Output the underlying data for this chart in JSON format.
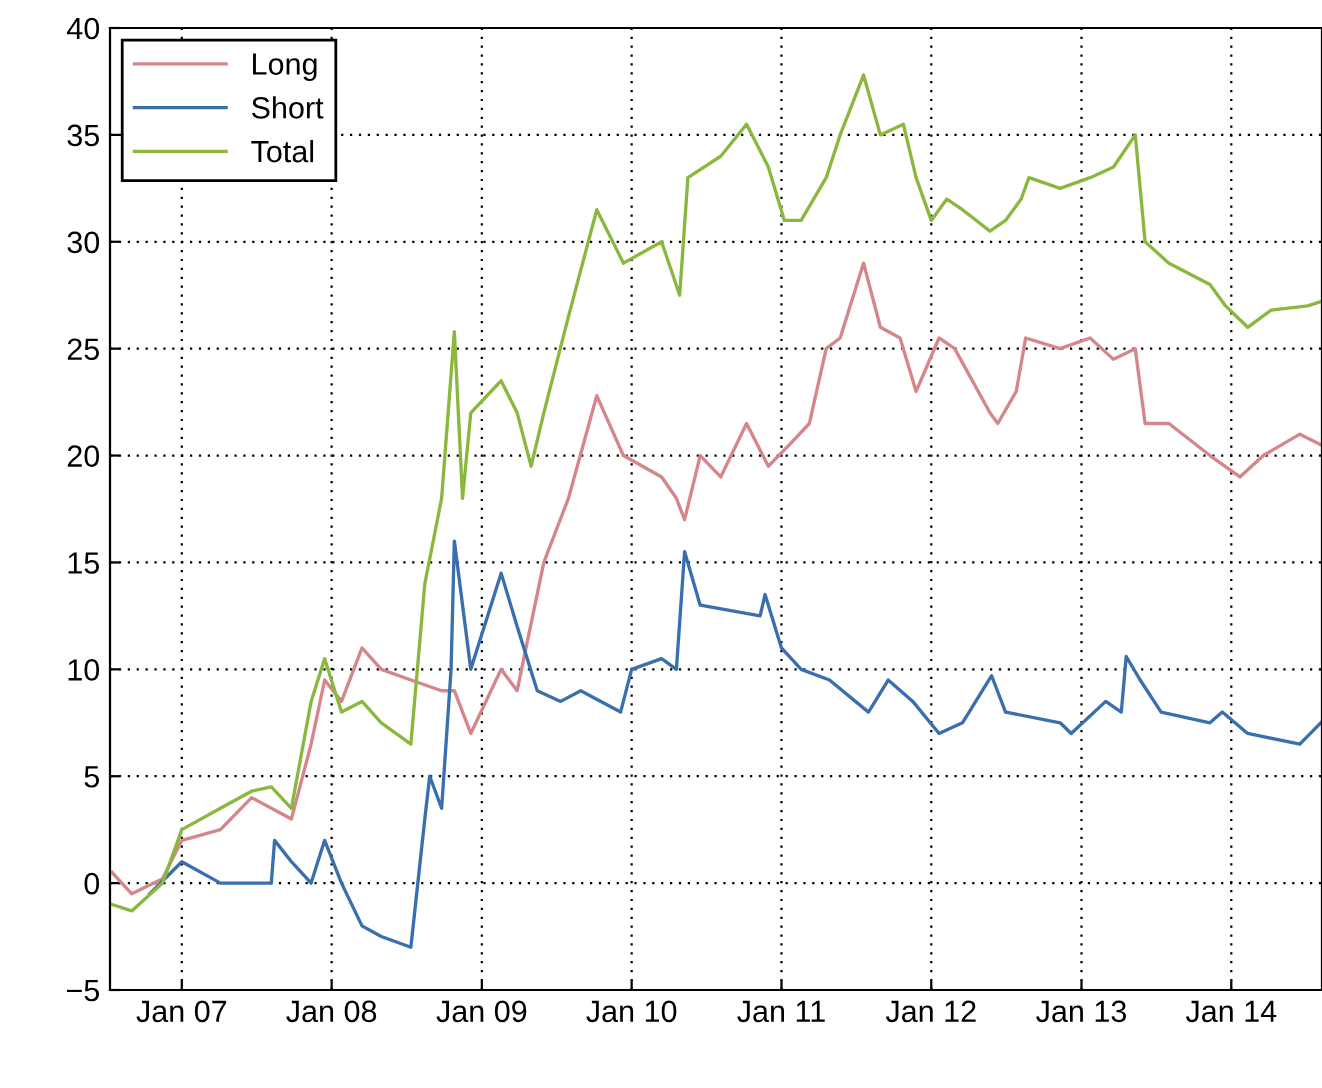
{
  "chart_data": {
    "type": "line",
    "xlim": [
      "2006-07-10",
      "2014-08-10"
    ],
    "xticks": [
      {
        "value": "2007-01-01",
        "label": "Jan 07"
      },
      {
        "value": "2008-01-01",
        "label": "Jan 08"
      },
      {
        "value": "2009-01-01",
        "label": "Jan 09"
      },
      {
        "value": "2010-01-01",
        "label": "Jan 10"
      },
      {
        "value": "2011-01-01",
        "label": "Jan 11"
      },
      {
        "value": "2012-01-01",
        "label": "Jan 12"
      },
      {
        "value": "2013-01-01",
        "label": "Jan 13"
      },
      {
        "value": "2014-01-01",
        "label": "Jan 14"
      }
    ],
    "ylim": [
      -5,
      40
    ],
    "yticks": [
      -5,
      0,
      5,
      10,
      15,
      20,
      25,
      30,
      35,
      40
    ],
    "grid": true,
    "legend": "top left",
    "line_style": "solid",
    "marker": "none",
    "series": [
      {
        "name": "Long",
        "color": "#d4868a",
        "x": [
          "2006-07-15",
          "2006-09-01",
          "2006-11-15",
          "2007-01-01",
          "2007-04-05",
          "2007-06-20",
          "2007-09-25",
          "2007-11-12",
          "2007-12-15",
          "2008-01-25",
          "2008-03-15",
          "2008-05-01",
          "2008-07-12",
          "2008-09-25",
          "2008-10-26",
          "2008-12-05",
          "2009-02-17",
          "2009-03-28",
          "2009-06-01",
          "2009-07-31",
          "2009-10-08",
          "2009-12-12",
          "2010-03-15",
          "2010-04-20",
          "2010-05-10",
          "2010-06-17",
          "2010-08-06",
          "2010-10-08",
          "2010-11-30",
          "2011-01-20",
          "2011-03-10",
          "2011-04-20",
          "2011-05-24",
          "2011-07-20",
          "2011-08-30",
          "2011-10-17",
          "2011-11-25",
          "2012-01-20",
          "2012-02-27",
          "2012-05-23",
          "2012-06-11",
          "2012-07-26",
          "2012-08-18",
          "2012-11-10",
          "2013-01-22",
          "2013-03-20",
          "2013-05-12",
          "2013-06-05",
          "2013-08-02",
          "2013-11-10",
          "2014-01-22",
          "2014-03-20",
          "2014-06-17",
          "2014-08-07"
        ],
        "values": [
          0.5,
          -0.5,
          0.2,
          2,
          2.5,
          4,
          3,
          6.5,
          9.5,
          8.5,
          11,
          10,
          9.5,
          9,
          9,
          7,
          10,
          9,
          15,
          18,
          22.8,
          20,
          19,
          18,
          17,
          20,
          19,
          21.5,
          19.5,
          20.5,
          21.5,
          25,
          25.5,
          29,
          26,
          25.5,
          23,
          25.5,
          25,
          22,
          21.5,
          23,
          25.5,
          25,
          25.5,
          24.5,
          25,
          21.5,
          21.5,
          20,
          19,
          20,
          21,
          20.5
        ]
      },
      {
        "name": "Short",
        "color": "#3a6fae",
        "x": [
          "2006-10-15",
          "2007-01-01",
          "2007-04-05",
          "2007-06-20",
          "2007-08-07",
          "2007-08-15",
          "2007-09-25",
          "2007-11-12",
          "2007-12-15",
          "2008-01-25",
          "2008-03-15",
          "2008-05-01",
          "2008-07-12",
          "2008-08-15",
          "2008-08-27",
          "2008-09-25",
          "2008-10-18",
          "2008-10-26",
          "2008-12-05",
          "2009-02-17",
          "2009-03-28",
          "2009-05-16",
          "2009-07-12",
          "2009-08-30",
          "2009-12-05",
          "2010-01-01",
          "2010-03-15",
          "2010-04-20",
          "2010-05-10",
          "2010-06-17",
          "2010-11-10",
          "2010-11-22",
          "2011-01-01",
          "2011-02-18",
          "2011-04-28",
          "2011-08-01",
          "2011-09-18",
          "2011-11-17",
          "2012-01-20",
          "2012-03-17",
          "2012-05-27",
          "2012-06-30",
          "2012-11-10",
          "2012-12-07",
          "2013-03-01",
          "2013-04-08",
          "2013-04-20",
          "2013-05-24",
          "2013-07-14",
          "2013-11-10",
          "2013-12-10",
          "2014-02-10",
          "2014-06-17",
          "2014-08-07"
        ],
        "values": [
          -0.5,
          1,
          0,
          0,
          0,
          2,
          1,
          0,
          2,
          0,
          -2,
          -2.5,
          -3,
          3,
          5,
          3.5,
          10,
          16,
          10,
          14.5,
          12,
          9,
          8.5,
          9,
          8,
          10,
          10.5,
          10,
          15.5,
          13,
          12.5,
          13.5,
          11,
          10,
          9.5,
          8,
          9.5,
          8.5,
          7,
          7.5,
          9.7,
          8,
          7.5,
          7,
          8.5,
          8,
          10.6,
          9.5,
          8,
          7.5,
          8,
          7,
          6.5,
          7.5
        ]
      },
      {
        "name": "Total",
        "color": "#8ab83f",
        "x": [
          "2006-07-15",
          "2006-09-01",
          "2006-11-15",
          "2007-01-01",
          "2007-04-05",
          "2007-06-20",
          "2007-08-07",
          "2007-09-25",
          "2007-11-12",
          "2007-12-15",
          "2008-01-25",
          "2008-03-15",
          "2008-05-01",
          "2008-07-12",
          "2008-08-15",
          "2008-09-25",
          "2008-10-26",
          "2008-11-15",
          "2008-12-05",
          "2009-02-17",
          "2009-03-28",
          "2009-05-01",
          "2009-06-01",
          "2009-07-31",
          "2009-10-08",
          "2009-12-12",
          "2010-03-15",
          "2010-04-28",
          "2010-05-18",
          "2010-08-06",
          "2010-10-08",
          "2010-11-30",
          "2011-01-08",
          "2011-02-18",
          "2011-04-20",
          "2011-05-24",
          "2011-07-20",
          "2011-08-30",
          "2011-10-25",
          "2011-11-25",
          "2012-01-01",
          "2012-02-08",
          "2012-03-17",
          "2012-05-23",
          "2012-06-30",
          "2012-08-07",
          "2012-08-26",
          "2012-11-10",
          "2013-01-22",
          "2013-03-20",
          "2013-05-12",
          "2013-06-05",
          "2013-08-02",
          "2013-11-10",
          "2013-12-18",
          "2014-02-10",
          "2014-04-08",
          "2014-07-06",
          "2014-08-07"
        ],
        "values": [
          -1,
          -1.3,
          0,
          2.5,
          3.5,
          4.3,
          4.5,
          3.5,
          8.5,
          10.5,
          8,
          8.5,
          7.5,
          6.5,
          14,
          18,
          25.8,
          18,
          22,
          23.5,
          22,
          19.5,
          22,
          26.5,
          31.5,
          29,
          30,
          27.5,
          33,
          34,
          35.5,
          33.5,
          31,
          31,
          33,
          35,
          37.8,
          35,
          35.5,
          33,
          31,
          32,
          31.5,
          30.5,
          31,
          32,
          33,
          32.5,
          33,
          33.5,
          35,
          30,
          29,
          28,
          27,
          26,
          26.8,
          27,
          27.2
        ]
      }
    ]
  }
}
